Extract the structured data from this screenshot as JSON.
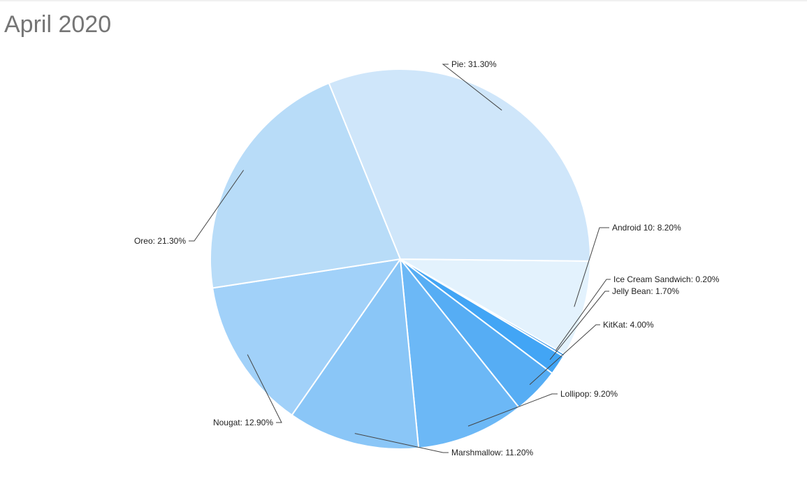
{
  "chart_data": {
    "type": "pie",
    "title": "April 2020",
    "unit": "%",
    "slices": [
      {
        "label": "Android 10",
        "value": 8.2,
        "text": "Android 10: 8.20%",
        "color": "#e3f2fd"
      },
      {
        "label": "Ice Cream Sandwich",
        "value": 0.2,
        "text": "Ice Cream Sandwich: 0.20%",
        "color": "#1e88e5"
      },
      {
        "label": "Jelly Bean",
        "value": 1.7,
        "text": "Jelly Bean: 1.70%",
        "color": "#42a5f5"
      },
      {
        "label": "KitKat",
        "value": 4.0,
        "text": "KitKat: 4.00%",
        "color": "#56adf4"
      },
      {
        "label": "Lollipop",
        "value": 9.2,
        "text": "Lollipop: 9.20%",
        "color": "#6cb8f6"
      },
      {
        "label": "Marshmallow",
        "value": 11.2,
        "text": "Marshmallow: 11.20%",
        "color": "#8ac6f7"
      },
      {
        "label": "Nougat",
        "value": 12.9,
        "text": "Nougat: 12.90%",
        "color": "#a1d1f9"
      },
      {
        "label": "Oreo",
        "value": 21.3,
        "text": "Oreo: 21.30%",
        "color": "#b8dcf8"
      },
      {
        "label": "Pie",
        "value": 31.3,
        "text": "Pie: 31.30%",
        "color": "#cfe6fa"
      }
    ]
  }
}
